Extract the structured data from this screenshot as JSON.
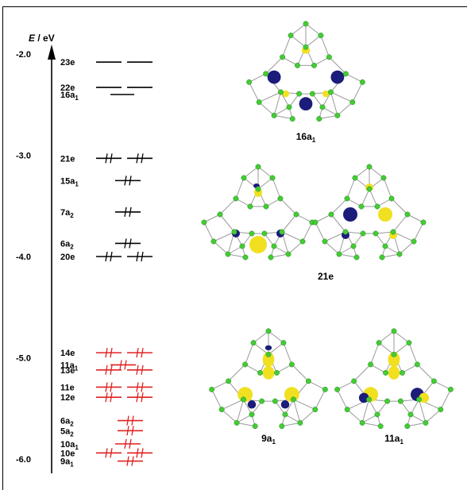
{
  "figure": {
    "axis_label": {
      "symbol": "E",
      "rest": " / eV"
    },
    "ticks": [
      "-2.0",
      "-3.0",
      "-4.0",
      "-5.0",
      "-6.0"
    ],
    "occupied_color": "#000000",
    "red_color": "#e02020",
    "lobe_blue": "#1c1c7a",
    "lobe_yellow": "#f0e020",
    "atom_green": "#44cc33",
    "bond_gray": "#9a9a9a",
    "levels": [
      {
        "label": "23e",
        "sub": "",
        "energy": -2.08,
        "type": "e",
        "occupied": false,
        "color": "black"
      },
      {
        "label": "22e",
        "sub": "",
        "energy": -2.33,
        "type": "e",
        "occupied": false,
        "color": "black"
      },
      {
        "label": "16a",
        "sub": "1",
        "energy": -2.4,
        "type": "a",
        "occupied": false,
        "color": "black"
      },
      {
        "label": "21e",
        "sub": "",
        "energy": -3.03,
        "type": "e",
        "occupied": true,
        "color": "black"
      },
      {
        "label": "15a",
        "sub": "1",
        "energy": -3.25,
        "type": "a",
        "occupied": true,
        "color": "black"
      },
      {
        "label": "7a",
        "sub": "2",
        "energy": -3.56,
        "type": "a",
        "occupied": true,
        "color": "black"
      },
      {
        "label": "6a",
        "sub": "2",
        "energy": -3.87,
        "type": "a",
        "occupied": true,
        "color": "black"
      },
      {
        "label": "20e",
        "sub": "",
        "energy": -4.0,
        "type": "e",
        "occupied": true,
        "color": "black"
      },
      {
        "label": "14e",
        "sub": "",
        "energy": -4.95,
        "type": "e",
        "occupied": true,
        "color": "red"
      },
      {
        "label": "11a",
        "sub": "1",
        "energy": -5.07,
        "type": "a",
        "occupied": true,
        "color": "red"
      },
      {
        "label": "13e",
        "sub": "",
        "energy": -5.12,
        "type": "e",
        "occupied": true,
        "color": "red"
      },
      {
        "label": "11e",
        "sub": "",
        "energy": -5.29,
        "type": "e",
        "occupied": true,
        "color": "red"
      },
      {
        "label": "12e",
        "sub": "",
        "energy": -5.39,
        "type": "e",
        "occupied": true,
        "color": "red"
      },
      {
        "label": "6a",
        "sub": "2",
        "energy": -5.62,
        "type": "a",
        "occupied": true,
        "color": "red"
      },
      {
        "label": "5a",
        "sub": "2",
        "energy": -5.72,
        "type": "a",
        "occupied": true,
        "color": "red"
      },
      {
        "label": "10a",
        "sub": "1",
        "energy": -5.85,
        "type": "a",
        "occupied": true,
        "color": "red"
      },
      {
        "label": "10e",
        "sub": "",
        "energy": -5.94,
        "type": "e",
        "occupied": true,
        "color": "red"
      },
      {
        "label": "9a",
        "sub": "1",
        "energy": -6.02,
        "type": "a",
        "occupied": true,
        "color": "red"
      }
    ],
    "captions": [
      {
        "main": "16a",
        "sub": "1"
      },
      {
        "main": "21e",
        "sub": ""
      },
      {
        "main": "9a",
        "sub": "1"
      },
      {
        "main": "11a",
        "sub": "1"
      }
    ]
  }
}
